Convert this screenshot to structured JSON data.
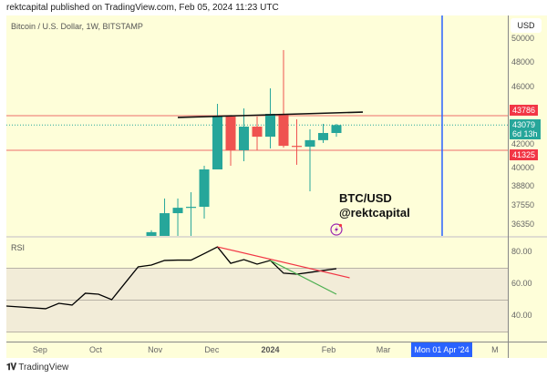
{
  "header": {
    "published": "rektcapital published on TradingView.com, Feb 05, 2024 11:23 UTC"
  },
  "footer": {
    "logo": "TradingView"
  },
  "colors": {
    "background": "#fefed9",
    "up": "#26a69a",
    "down": "#ef5350",
    "level_line": "#f28b82",
    "current_price": "#26a69a",
    "vertical_marker": "#2962ff",
    "rsi_band": "#f2ecd8",
    "rsi_line": "#000000",
    "rsi_trend_red": "#f23645",
    "rsi_trend_green": "#4caf50"
  },
  "annotation": {
    "line1": "BTC/USD",
    "line2": "@rektcapital",
    "icon": "lightning-icon"
  },
  "chart_data": [
    {
      "type": "candlestick",
      "title": "Bitcoin / U.S. Dollar, 1W, BITSTAMP",
      "currency": "USD",
      "ytick_labels": [
        "50000",
        "48000",
        "46000",
        "42000",
        "40000",
        "38800",
        "37550",
        "36350"
      ],
      "yticks": [
        50000,
        48000,
        46000,
        42000,
        40000,
        38800,
        37550,
        36350
      ],
      "price_labels": {
        "resistance": "43786",
        "current": "43079",
        "countdown": "6d 13h",
        "support": "41325"
      },
      "levels": {
        "resistance": 43786,
        "support": 41325,
        "current": 43079
      },
      "trendline": {
        "from": {
          "date": "2023-11-13",
          "price": 43650
        },
        "to": {
          "date": "2024-02-19",
          "price": 44070
        }
      },
      "vertical_marker": {
        "date": "2024-04-01",
        "label": "Mon 01 Apr '24"
      },
      "candles": [
        {
          "date": "2023-10-30",
          "o": 35400,
          "h": 36020,
          "l": 35000,
          "c": 35900
        },
        {
          "date": "2023-11-06",
          "o": 35400,
          "h": 38030,
          "l": 35000,
          "c": 37090
        },
        {
          "date": "2023-11-13",
          "o": 37090,
          "h": 38030,
          "l": 35000,
          "c": 37430
        },
        {
          "date": "2023-11-20",
          "o": 37480,
          "h": 38440,
          "l": 35000,
          "c": 37490
        },
        {
          "date": "2023-11-27",
          "o": 37490,
          "h": 40200,
          "l": 36750,
          "c": 39940
        },
        {
          "date": "2023-12-04",
          "o": 39940,
          "h": 44714,
          "l": 39940,
          "c": 43720
        },
        {
          "date": "2023-12-11",
          "o": 43720,
          "h": 43720,
          "l": 40200,
          "c": 41325
        },
        {
          "date": "2023-12-18",
          "o": 41325,
          "h": 44357,
          "l": 40530,
          "c": 42960
        },
        {
          "date": "2023-12-25",
          "o": 42960,
          "h": 43720,
          "l": 41325,
          "c": 42200
        },
        {
          "date": "2024-01-01",
          "o": 42200,
          "h": 45930,
          "l": 41440,
          "c": 43930
        },
        {
          "date": "2024-01-08",
          "o": 43930,
          "h": 49080,
          "l": 41490,
          "c": 41600
        },
        {
          "date": "2024-01-15",
          "o": 41600,
          "h": 43510,
          "l": 40270,
          "c": 41550
        },
        {
          "date": "2024-01-22",
          "o": 41550,
          "h": 42760,
          "l": 38500,
          "c": 41950
        },
        {
          "date": "2024-01-29",
          "o": 41950,
          "h": 43170,
          "l": 41780,
          "c": 42480
        },
        {
          "date": "2024-02-05",
          "o": 42480,
          "h": 43170,
          "l": 42200,
          "c": 43079
        }
      ],
      "xtick_labels": [
        {
          "label": "Sep",
          "date": "2023-09-01"
        },
        {
          "label": "Oct",
          "date": "2023-10-01"
        },
        {
          "label": "Nov",
          "date": "2023-11-01"
        },
        {
          "label": "Dec",
          "date": "2023-12-01"
        },
        {
          "label": "2024",
          "date": "2024-01-01",
          "bold": true
        },
        {
          "label": "Feb",
          "date": "2024-02-01"
        },
        {
          "label": "Mar",
          "date": "2024-03-01"
        },
        {
          "label": "M",
          "date": "2024-05-01"
        }
      ]
    },
    {
      "type": "line",
      "title": "RSI",
      "ylim": [
        23.4,
        88.6
      ],
      "yticks": [
        80,
        60,
        40
      ],
      "ytick_labels": [
        "80.00",
        "60.00",
        "40.00"
      ],
      "band": [
        30,
        70
      ],
      "midline": 50,
      "series": [
        {
          "values": [
            {
              "date": "2023-08-14",
              "v": 46.3
            },
            {
              "date": "2023-09-04",
              "v": 44.6
            },
            {
              "date": "2023-09-11",
              "v": 48.0
            },
            {
              "date": "2023-09-18",
              "v": 46.9
            },
            {
              "date": "2023-09-25",
              "v": 54.3
            },
            {
              "date": "2023-10-02",
              "v": 53.7
            },
            {
              "date": "2023-10-09",
              "v": 50.3
            },
            {
              "date": "2023-10-16",
              "v": 60.6
            },
            {
              "date": "2023-10-23",
              "v": 70.9
            },
            {
              "date": "2023-10-30",
              "v": 72.0
            },
            {
              "date": "2023-11-06",
              "v": 74.9
            },
            {
              "date": "2023-11-13",
              "v": 75.1
            },
            {
              "date": "2023-11-20",
              "v": 75.1
            },
            {
              "date": "2023-11-27",
              "v": 79.2
            },
            {
              "date": "2023-12-04",
              "v": 83.4
            },
            {
              "date": "2023-12-11",
              "v": 73.1
            },
            {
              "date": "2023-12-18",
              "v": 75.4
            },
            {
              "date": "2023-12-25",
              "v": 72.6
            },
            {
              "date": "2024-01-01",
              "v": 74.9
            },
            {
              "date": "2024-01-08",
              "v": 66.9
            },
            {
              "date": "2024-01-15",
              "v": 66.3
            },
            {
              "date": "2024-01-22",
              "v": 67.4
            },
            {
              "date": "2024-01-29",
              "v": 68.6
            },
            {
              "date": "2024-02-05",
              "v": 69.7
            }
          ]
        }
      ],
      "trendlines": [
        {
          "color": "red",
          "from": {
            "date": "2023-12-04",
            "v": 83.4
          },
          "to": {
            "date": "2024-02-12",
            "v": 64.0
          }
        },
        {
          "color": "green",
          "from": {
            "date": "2024-01-01",
            "v": 74.9
          },
          "to": {
            "date": "2024-02-05",
            "v": 53.7
          }
        }
      ]
    }
  ]
}
